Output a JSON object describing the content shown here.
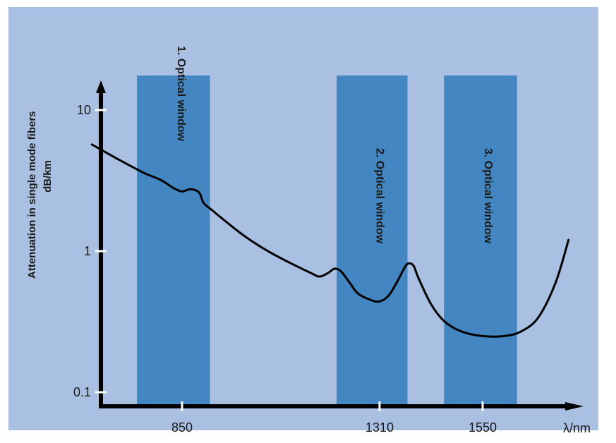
{
  "chart_data": {
    "type": "line",
    "ylabel": "Attenuation in single mode fibers",
    "yunit": "dB/km",
    "xlabel": "λ/nm",
    "y_scale": "log",
    "ylim": [
      0.1,
      10
    ],
    "xlim": [
      620,
      1860
    ],
    "x_ticks": [
      850,
      1310,
      1550
    ],
    "y_ticks": [
      0.1,
      1,
      10
    ],
    "y_tick_labels": [
      "0.1",
      "1",
      "10"
    ],
    "windows": [
      {
        "label": "1. Optical window",
        "x_range": [
          745,
          915
        ]
      },
      {
        "label": "2. Optical window",
        "x_range": [
          1210,
          1375
        ]
      },
      {
        "label": "3. Optical window",
        "x_range": [
          1460,
          1630
        ]
      }
    ],
    "series": [
      {
        "x": [
          640,
          700,
          760,
          800,
          830,
          850,
          870,
          890,
          900,
          920,
          960,
          1000,
          1050,
          1100,
          1150,
          1170,
          1190,
          1205,
          1220,
          1240,
          1260,
          1290,
          1310,
          1330,
          1350,
          1370,
          1380,
          1390,
          1400,
          1430,
          1460,
          1500,
          1550,
          1600,
          1640,
          1680,
          1720,
          1750
        ],
        "y": [
          5.7,
          4.5,
          3.6,
          3.2,
          2.8,
          2.65,
          2.75,
          2.6,
          2.2,
          1.95,
          1.55,
          1.25,
          1.0,
          0.83,
          0.7,
          0.66,
          0.7,
          0.75,
          0.72,
          0.6,
          0.5,
          0.45,
          0.44,
          0.48,
          0.6,
          0.78,
          0.82,
          0.78,
          0.65,
          0.42,
          0.32,
          0.27,
          0.25,
          0.25,
          0.27,
          0.34,
          0.6,
          1.2
        ]
      }
    ]
  }
}
